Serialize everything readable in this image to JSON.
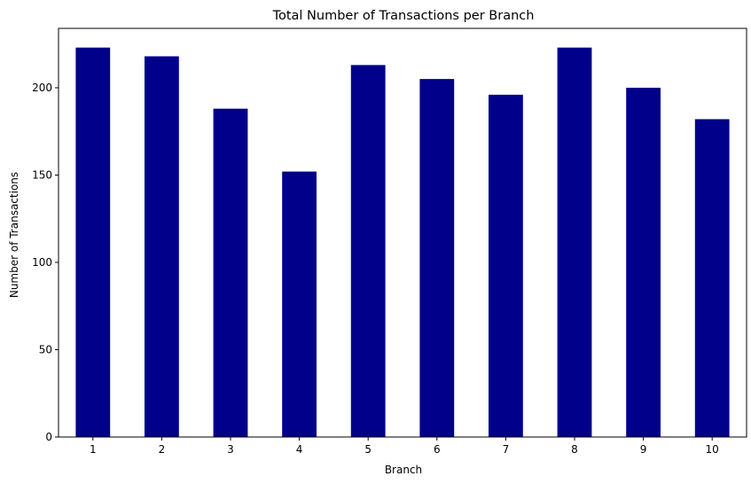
{
  "chart_data": {
    "type": "bar",
    "title": "Total Number of Transactions per Branch",
    "xlabel": "Branch",
    "ylabel": "Number of Transactions",
    "categories": [
      "1",
      "2",
      "3",
      "4",
      "5",
      "6",
      "7",
      "8",
      "9",
      "10"
    ],
    "values": [
      223,
      218,
      188,
      152,
      213,
      205,
      196,
      223,
      200,
      182
    ],
    "ylim": [
      0,
      234
    ],
    "yticks": [
      0,
      50,
      100,
      150,
      200
    ],
    "grid": false,
    "legend": "none",
    "bar_color": "#00008b"
  }
}
